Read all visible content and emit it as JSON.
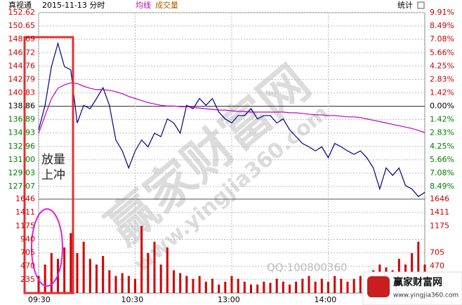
{
  "header": {
    "stats": "统计"
  },
  "chart_data": {
    "type": "line",
    "subtitle": "2015-11-13 分时",
    "categories": [
      "09:30",
      null,
      null,
      null,
      null,
      null,
      null,
      null,
      null,
      null,
      null,
      null,
      null,
      null,
      null,
      "10:30",
      null,
      null,
      null,
      null,
      null,
      null,
      null,
      null,
      null,
      null,
      null,
      null,
      null,
      null,
      "13:00",
      null,
      null,
      null,
      null,
      null,
      null,
      null,
      null,
      null,
      null,
      null,
      null,
      null,
      null,
      "14:00",
      null,
      null,
      null,
      null,
      null,
      null,
      null,
      null,
      null,
      null,
      null,
      null,
      null,
      null,
      null
    ],
    "series": [
      {
        "name": "真视通",
        "color": "#000080",
        "values": [
          135.4,
          139.0,
          144.7,
          148.1,
          144.7,
          144.2,
          136.4,
          139.0,
          138.5,
          140.0,
          141.6,
          139.0,
          133.9,
          132.3,
          129.8,
          132.3,
          133.9,
          132.9,
          134.9,
          134.4,
          137.0,
          136.4,
          134.9,
          139.0,
          138.5,
          140.0,
          139.0,
          140.0,
          138.0,
          137.0,
          136.4,
          137.5,
          137.5,
          138.5,
          137.0,
          137.5,
          137.5,
          136.4,
          137.0,
          135.4,
          134.4,
          133.4,
          132.9,
          132.3,
          132.9,
          131.3,
          133.4,
          132.9,
          132.3,
          131.8,
          132.3,
          131.3,
          129.8,
          126.7,
          129.8,
          128.7,
          129.8,
          127.2,
          126.7,
          125.6,
          126.2
        ]
      },
      {
        "name": "均线",
        "color": "#c000c0",
        "values": [
          134.9,
          137.5,
          140.0,
          141.5,
          142.0,
          142.3,
          142.2,
          141.8,
          141.5,
          141.3,
          141.3,
          141.2,
          141.0,
          140.7,
          140.3,
          140.0,
          139.7,
          139.4,
          139.2,
          139.0,
          138.9,
          138.9,
          138.8,
          138.8,
          138.7,
          138.6,
          138.5,
          138.4,
          138.3,
          138.3,
          138.2,
          138.1,
          138.1,
          138.0,
          138.0,
          138.0,
          138.0,
          138.0,
          138.0,
          137.9,
          137.9,
          137.8,
          137.7,
          137.6,
          137.6,
          137.5,
          137.5,
          137.4,
          137.3,
          137.3,
          137.2,
          137.0,
          136.8,
          136.6,
          136.4,
          136.2,
          136.0,
          135.8,
          135.6,
          135.3,
          135.0
        ]
      }
    ],
    "ylim": [
      127.07,
      152.62
    ],
    "yticks": [
      152.62,
      150.65,
      148.69,
      146.72,
      144.76,
      142.79,
      140.83,
      138.86,
      136.89,
      134.93,
      132.96,
      {
        "value": 131.0,
        "label": "131.00"
      },
      129.03,
      127.07
    ],
    "y2lim": [
      -8.49,
      9.91
    ],
    "y2ticks": [
      {
        "value": 9.91,
        "label": "9.91%"
      },
      {
        "value": 8.49,
        "label": "8.49%"
      },
      {
        "value": 7.08,
        "label": "7.08%"
      },
      {
        "value": 5.66,
        "label": "5.66%"
      },
      {
        "value": 4.25,
        "label": "4.25%"
      },
      {
        "value": 2.83,
        "label": "2.83%"
      },
      {
        "value": 1.42,
        "label": "1.42%"
      },
      {
        "value": 0,
        "label": "0.00%"
      },
      {
        "value": -1.42,
        "label": "1.42%"
      },
      {
        "value": -2.83,
        "label": "2.83%"
      },
      {
        "value": -4.25,
        "label": "4.25%"
      },
      {
        "value": -5.66,
        "label": "5.66%"
      },
      {
        "value": -7.08,
        "label": "7.08%"
      },
      {
        "value": -8.49,
        "label": "8.49%"
      }
    ],
    "volume": {
      "name": "成交量",
      "color": "#d00000",
      "values": [
        300,
        500,
        700,
        600,
        800,
        1050,
        700,
        900,
        600,
        500,
        650,
        400,
        300,
        350,
        300,
        250,
        1175,
        700,
        900,
        500,
        800,
        400,
        350,
        300,
        250,
        300,
        200,
        250,
        150,
        200,
        300,
        250,
        200,
        150,
        150,
        200,
        180,
        250,
        200,
        150,
        200,
        250,
        300,
        200,
        250,
        200,
        300,
        250,
        200,
        250,
        300,
        350,
        400,
        500,
        450,
        400,
        600,
        500,
        700,
        900,
        500
      ],
      "ylim": [
        0,
        1646
      ],
      "yticks": [
        1646,
        1411,
        1175,
        940,
        705,
        470,
        235
      ],
      "y2ticks": [
        1646,
        1411,
        1175,
        705,
        470
      ]
    },
    "annotations": [
      "放量",
      "上冲"
    ]
  },
  "watermarks": {
    "big": "赢家财富网",
    "url": "www.yingjia360.com",
    "qq": "QQ:100800360",
    "logo_name": "赢家财富网",
    "logo_url": "www.yingjia360.com"
  }
}
